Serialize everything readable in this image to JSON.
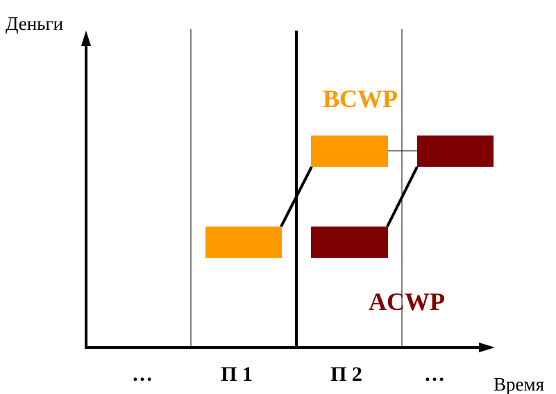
{
  "axes": {
    "y_label": "Деньги",
    "x_label": "Время"
  },
  "periods": [
    "…",
    "П 1",
    "П 2",
    "…"
  ],
  "series": {
    "bcwp": {
      "label": "BCWP",
      "color": "#FF9900"
    },
    "acwp": {
      "label": "ACWP",
      "color": "#7F0000"
    }
  },
  "colors": {
    "axis": "#000000",
    "divider": "#000000"
  }
}
